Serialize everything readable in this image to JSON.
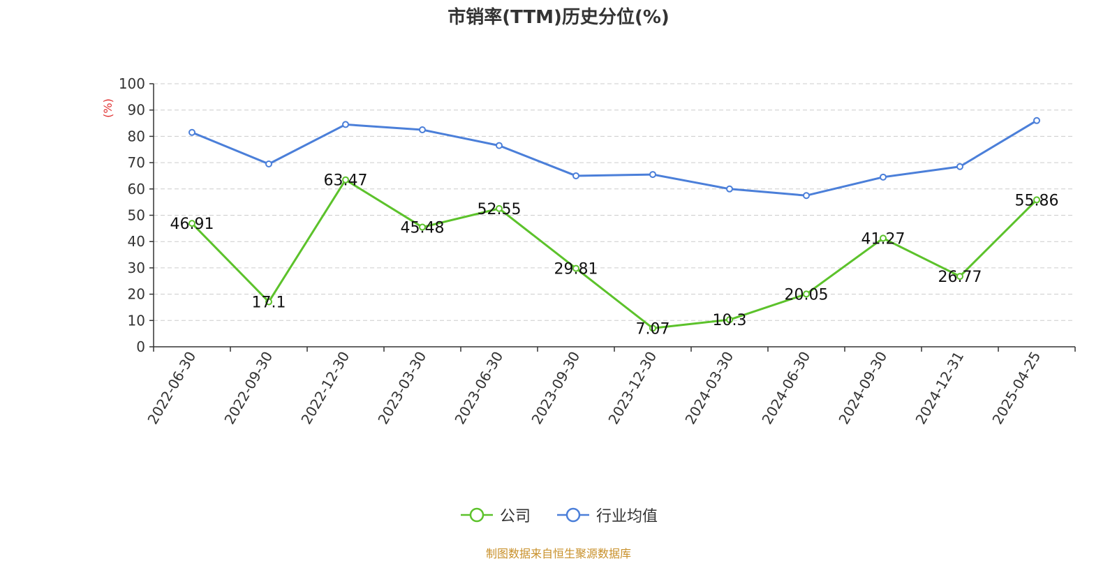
{
  "chart_data": {
    "type": "line",
    "title": "市销率(TTM)历史分位(%)",
    "ylabel": "(%)",
    "ylim": [
      0,
      100
    ],
    "yticks": [
      0,
      10,
      20,
      30,
      40,
      50,
      60,
      70,
      80,
      90,
      100
    ],
    "categories": [
      "2022-06-30",
      "2022-09-30",
      "2022-12-30",
      "2023-03-30",
      "2023-06-30",
      "2023-09-30",
      "2023-12-30",
      "2024-03-30",
      "2024-06-30",
      "2024-09-30",
      "2024-12-31",
      "2025-04-25"
    ],
    "series": [
      {
        "name": "公司",
        "color": "#5cc22b",
        "values": [
          46.91,
          17.1,
          63.47,
          45.48,
          52.55,
          29.81,
          7.07,
          10.3,
          20.05,
          41.27,
          26.77,
          55.86
        ],
        "labels": [
          "46.91",
          "17.1",
          "63.47",
          "45.48",
          "52.55",
          "29.81",
          "7.07",
          "10.3",
          "20.05",
          "41.27",
          "26.77",
          "55.86"
        ]
      },
      {
        "name": "行业均值",
        "color": "#4b7fd9",
        "values": [
          81.5,
          69.5,
          84.5,
          82.5,
          76.5,
          65,
          65.5,
          60,
          57.5,
          64.5,
          68.5,
          86
        ]
      }
    ],
    "grid": true,
    "legend": "bottom-center"
  },
  "source": "制图数据来自恒生聚源数据库"
}
